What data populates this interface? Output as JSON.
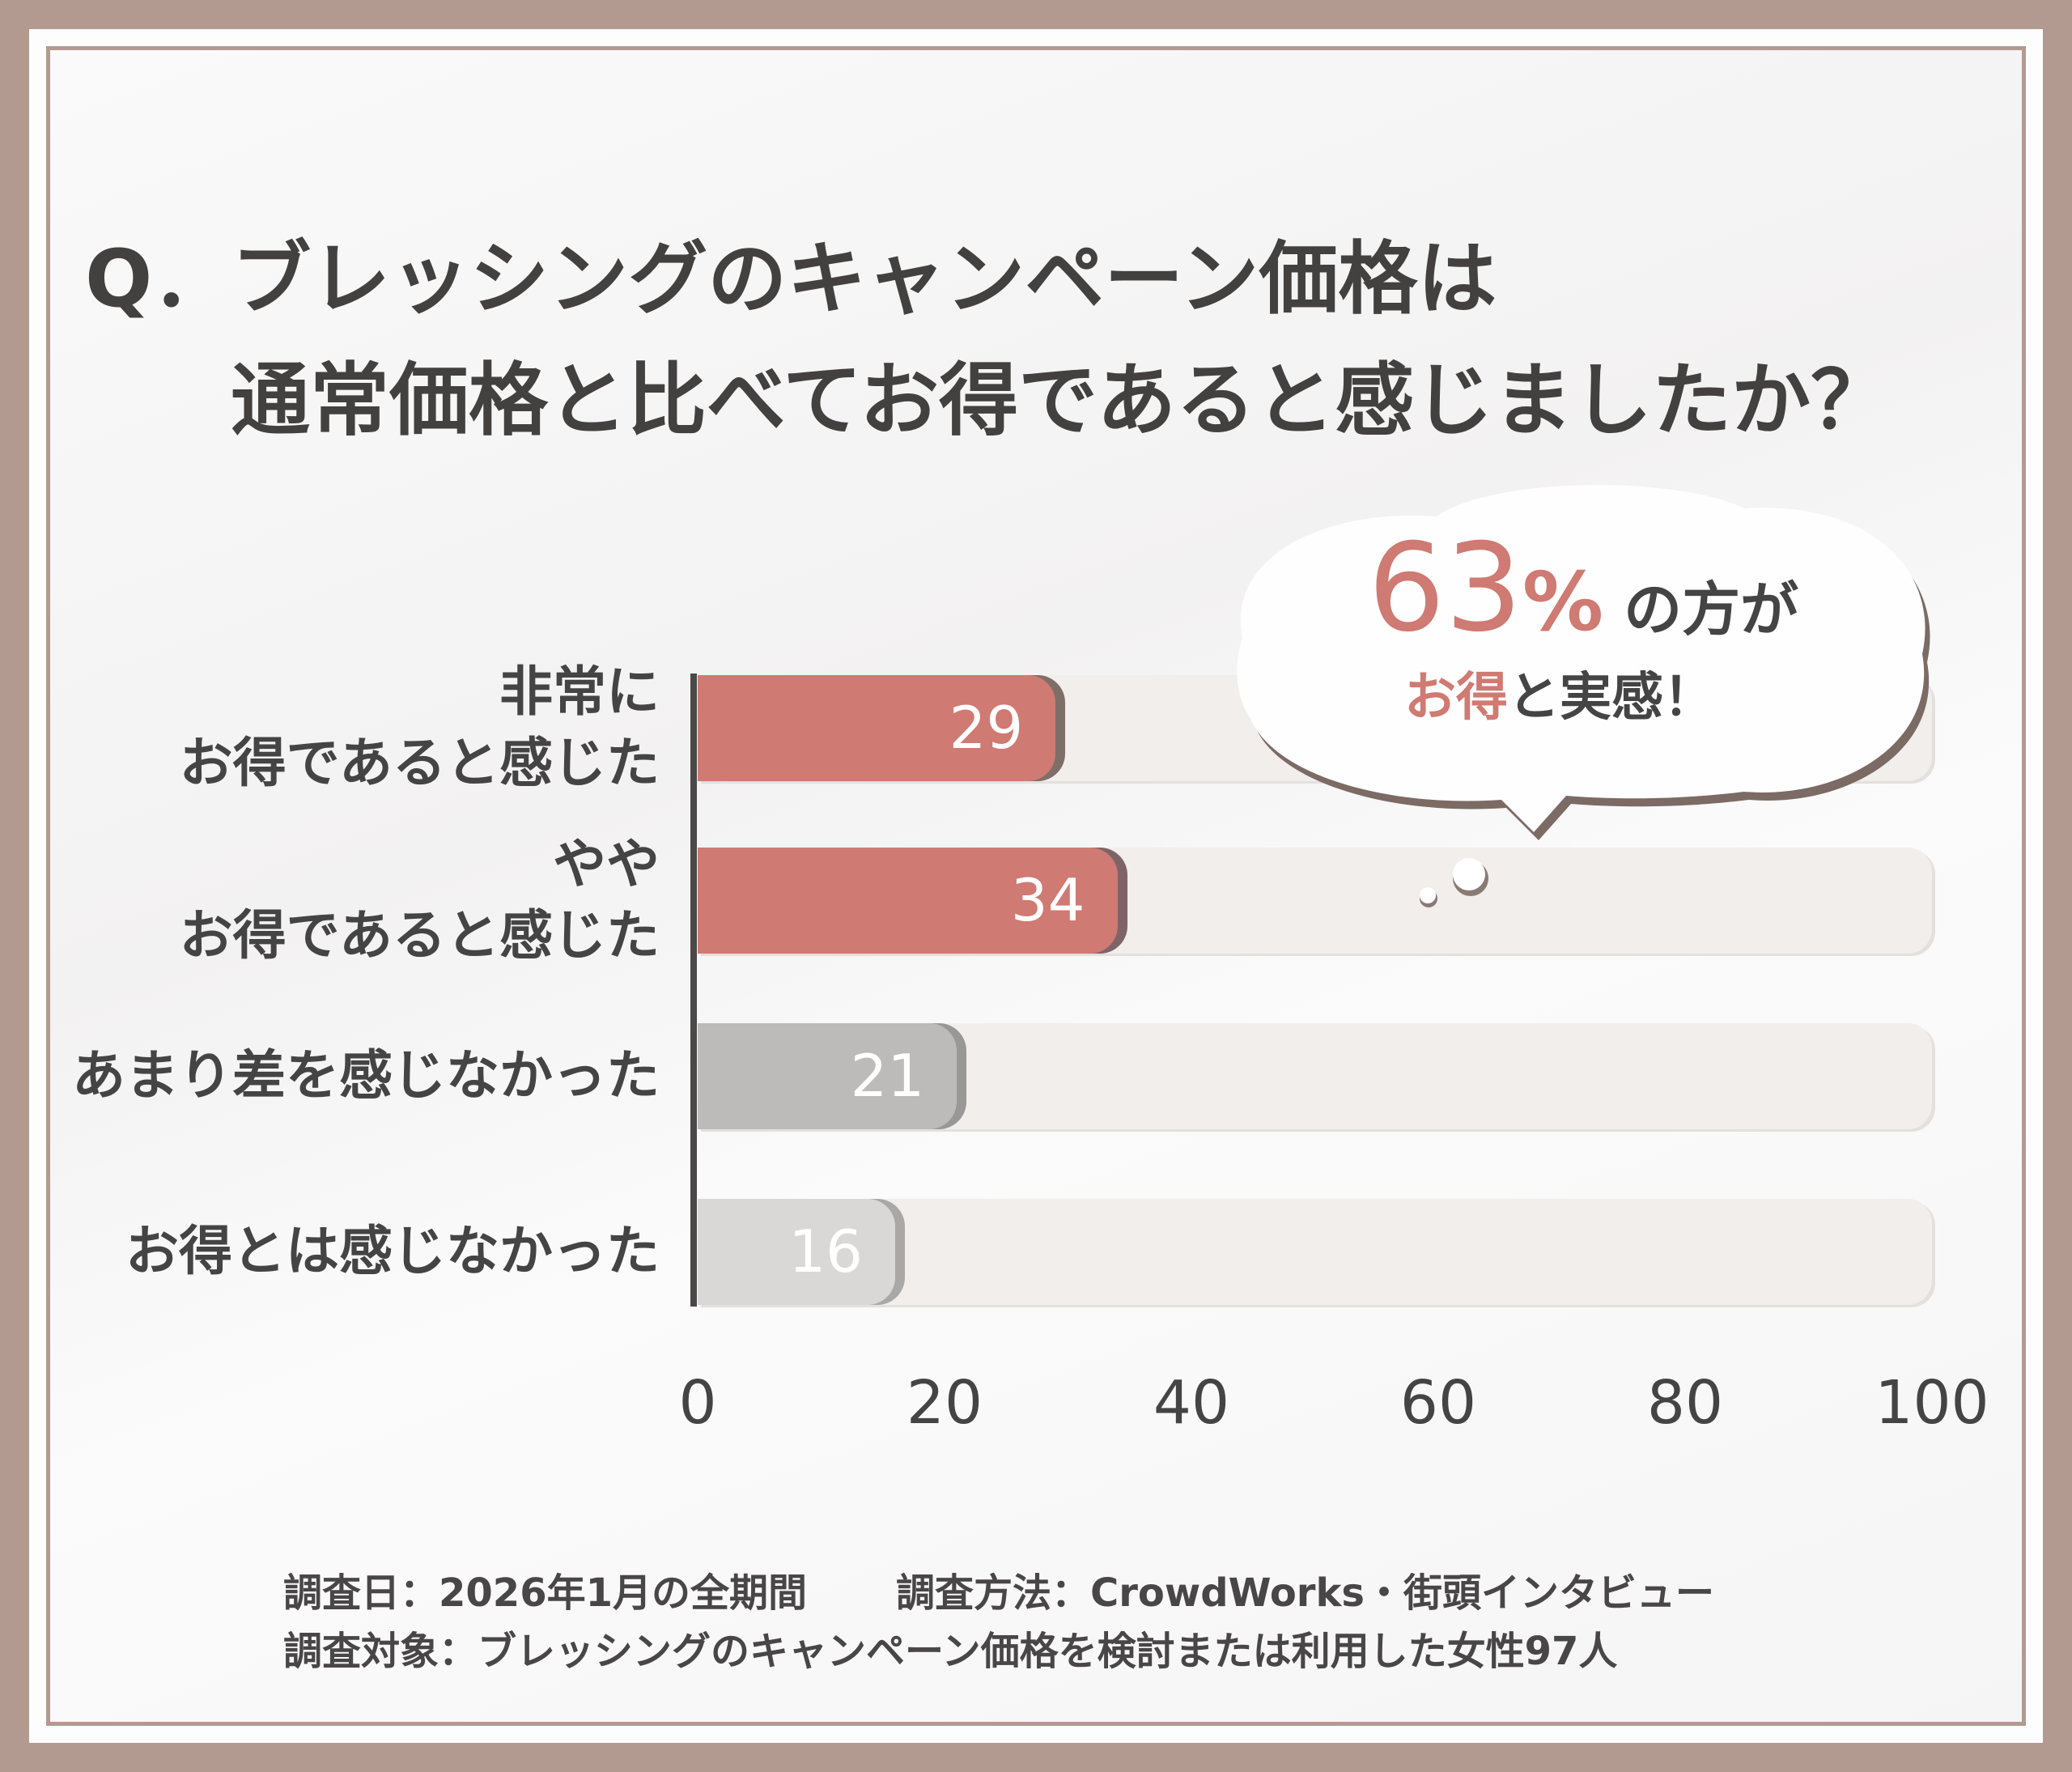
{
  "title": {
    "line1": "Q．ブレッシングのキャンペーン価格は",
    "line2": "通常価格と比べてお得であると感じましたか？"
  },
  "callout": {
    "number": "63",
    "unit": "%",
    "suffix": "の方が",
    "highlight": "お得",
    "rest": "と実感！"
  },
  "chart_data": {
    "type": "bar",
    "orientation": "horizontal",
    "categories": [
      "非常に\nお得であると感じた",
      "やや\nお得であると感じた",
      "あまり差を感じなかった",
      "お得とは感じなかった"
    ],
    "values": [
      29,
      34,
      21,
      16
    ],
    "xlim": [
      0,
      100
    ],
    "xticks": [
      "0",
      "20",
      "40",
      "60",
      "80",
      "100"
    ],
    "colors": [
      "#cf7a72",
      "#cf7a72",
      "#bdbbba",
      "#d9d8d7"
    ],
    "shadow_colors": [
      "#7e6e68",
      "#7e6468",
      "#999797",
      "#aaa8a7"
    ],
    "grid": false
  },
  "footer": {
    "line1a": "調査日：2026年1月の全期間",
    "line1b": "調査方法：CrowdWorks・街頭インタビュー",
    "line2": "調査対象：ブレッシングのキャンペーン価格を検討または利用した女性97人"
  }
}
